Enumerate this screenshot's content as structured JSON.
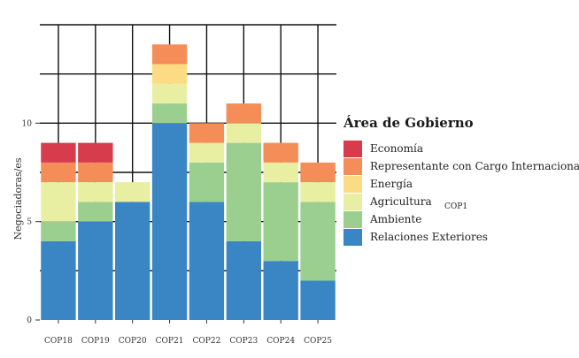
{
  "chart_data": {
    "type": "bar",
    "stacked": true,
    "categories": [
      "COP18",
      "COP19",
      "COP20",
      "COP21",
      "COP22",
      "COP23",
      "COP24",
      "COP25"
    ],
    "ylabel": "Negociadoras/es",
    "ylim": [
      0,
      15
    ],
    "yticks": [
      "0",
      "5",
      "10"
    ],
    "grid": true,
    "legend_position": "right",
    "legend_title": "Área de Gobierno",
    "series": [
      {
        "name": "Relaciones Exteriores",
        "color": "#3a86c4",
        "values": [
          4,
          5,
          6,
          10,
          6,
          4,
          3,
          2
        ]
      },
      {
        "name": "Ambiente",
        "color": "#9bcf8f",
        "values": [
          1,
          1,
          0,
          1,
          2,
          5,
          4,
          4
        ]
      },
      {
        "name": "Agricultura",
        "color": "#e8eea2",
        "values": [
          2,
          1,
          1,
          1,
          1,
          1,
          1,
          1
        ]
      },
      {
        "name": "Energía",
        "color": "#fbdc85",
        "values": [
          0,
          0,
          0,
          1,
          0,
          0,
          0,
          0
        ]
      },
      {
        "name": "Representante con Cargo Internacional",
        "color": "#f58d59",
        "values": [
          1,
          1,
          0,
          1,
          1,
          1,
          1,
          1
        ]
      },
      {
        "name": "Economía",
        "color": "#d63c4b",
        "values": [
          1,
          1,
          0,
          0,
          0,
          0,
          0,
          0
        ]
      }
    ],
    "stray_label": "COP1"
  }
}
